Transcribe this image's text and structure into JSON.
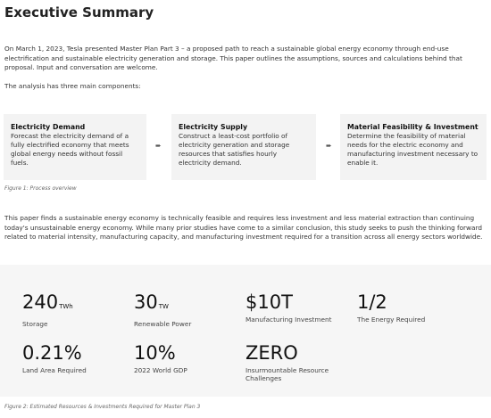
{
  "header": {
    "title": "Executive Summary"
  },
  "intro": {
    "paragraph": "On March 1, 2023, Tesla presented Master Plan Part 3 – a proposed path to reach a sustainable global energy economy through end-use electrification and sustainable electricity generation and storage. This paper outlines the assumptions, sources and calculations behind that proposal. Input and conversation are welcome.",
    "lead": "The analysis has three main components:"
  },
  "components": [
    {
      "title": "Electricity Demand",
      "text": "Forecast the electricity demand of a fully electrified economy that meets global energy needs without fossil fuels."
    },
    {
      "title": "Electricity Supply",
      "text": "Construct a least-cost portfolio of electricity generation and storage resources that satisfies hourly electricity demand."
    },
    {
      "title": "Material Feasibility & Investment",
      "text": "Determine the feasibility of material needs for the electric economy and manufacturing investment necessary to enable it."
    }
  ],
  "figure1_caption": "Figure 1: Process overview",
  "findings": "This paper finds a sustainable energy economy is technically feasible and requires less investment and less material extraction than continuing today's unsustainable energy economy. While many prior studies have come to a similar conclusion, this study seeks to push the thinking forward related to material intensity, manufacturing capacity, and manufacturing investment required for a transition across all energy sectors worldwide.",
  "stats": [
    {
      "value": "240",
      "unit": "TWh",
      "label": "Storage"
    },
    {
      "value": "30",
      "unit": "TW",
      "label": "Renewable Power"
    },
    {
      "value": "$10T",
      "label": "Manufacturing Investment"
    },
    {
      "value": "1/2",
      "label": "The Energy Required"
    },
    {
      "value": "0.21%",
      "label": "Land Area Required"
    },
    {
      "value": "10%",
      "label": "2022 World GDP"
    },
    {
      "value": "ZERO",
      "label": "Insurmountable Resource Challenges"
    }
  ],
  "figure2_caption": "Figure 2: Estimated Resources & Investments Required for Master Plan 3"
}
